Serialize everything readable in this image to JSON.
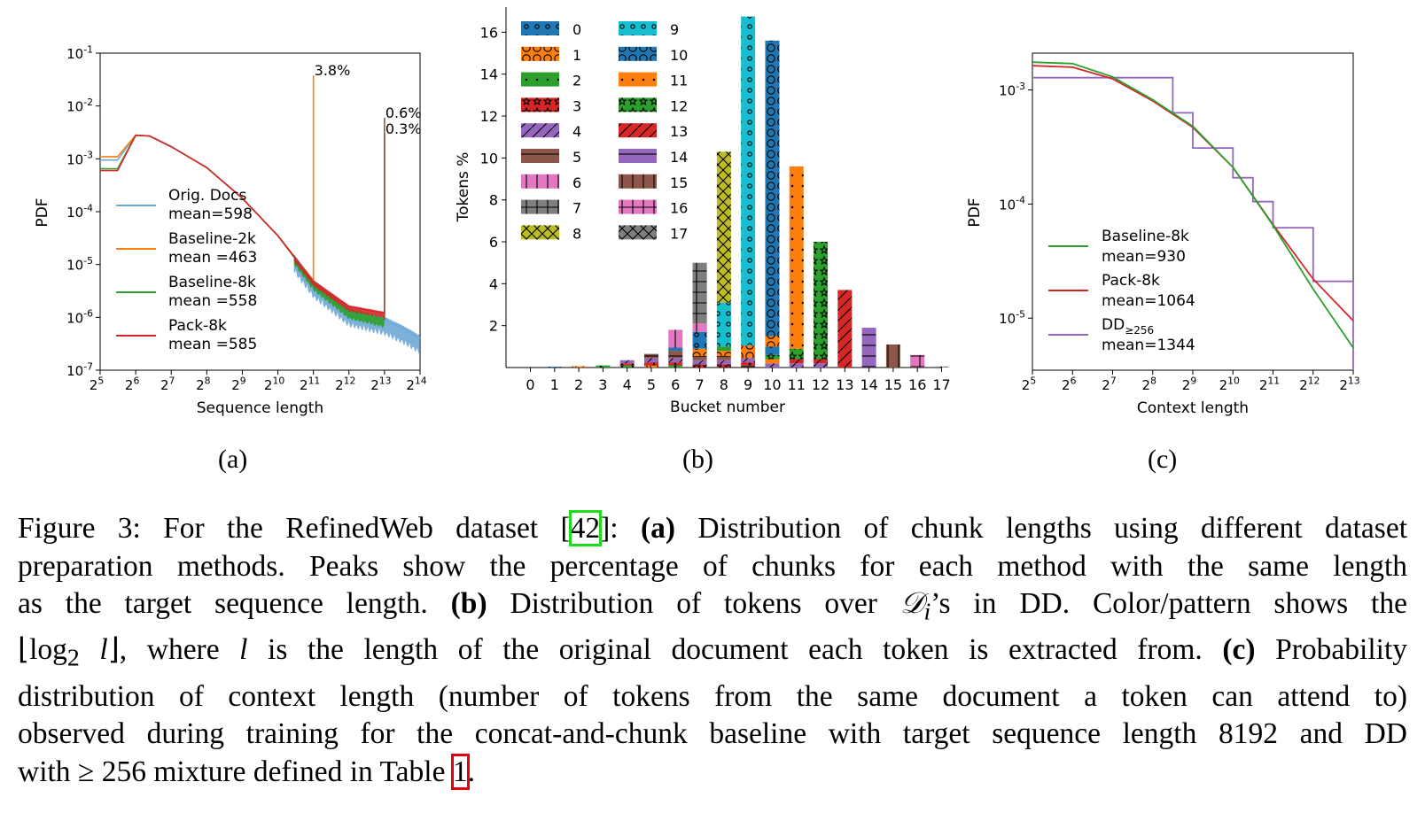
{
  "panel_labels": [
    "(a)",
    "(b)",
    "(c)"
  ],
  "caption": {
    "lines": [
      [
        "Figure 3: For the RefinedWeb dataset [",
        "42",
        "]: ",
        "(a)",
        " Distribution of chunk lengths using different dataset"
      ],
      [
        "preparation methods. Peaks show the percentage of chunks for each method with the same length"
      ],
      [
        "as the target sequence length. ",
        "(b)",
        " Distribution of tokens over ",
        "𝒟",
        "i",
        "’s in DD. Color/pattern shows the"
      ],
      [
        "⌊log",
        "2",
        " l",
        "⌋, where ",
        "l",
        " is the length of the original document each token is extracted from. ",
        "(c)",
        " Probability"
      ],
      [
        "distribution of context length (number of tokens from the same document a token can attend to)"
      ],
      [
        "observed during training for the concat-and-chunk baseline with target sequence length 8192 and DD"
      ],
      [
        "with ≥ 256 mixture defined in Table ",
        "1",
        "."
      ]
    ]
  },
  "chart_data": [
    {
      "type": "line",
      "panel": "(a)",
      "xlabel": "Sequence length",
      "ylabel": "PDF",
      "xscale": "log2",
      "yscale": "log10",
      "xlim": [
        32,
        16384
      ],
      "ylim": [
        1e-07,
        0.1
      ],
      "x_ticks": [
        "2^5",
        "2^6",
        "2^7",
        "2^8",
        "2^9",
        "2^10",
        "2^11",
        "2^12",
        "2^13",
        "2^14"
      ],
      "y_ticks": [
        "10^-7",
        "10^-6",
        "10^-5",
        "10^-4",
        "10^-3",
        "10^-2",
        "10^-1"
      ],
      "legend_position": "center-left",
      "series": [
        {
          "name": "Orig. Docs",
          "mean_label": "mean=598",
          "color": "#6fa8d6",
          "x": [
            32,
            45,
            64,
            84,
            128,
            256,
            512,
            1024,
            2048,
            4096,
            8192,
            12000,
            16384
          ],
          "y": [
            0.00095,
            0.00095,
            0.0028,
            0.0027,
            0.0017,
            0.00068,
            0.00018,
            3.5e-05,
            4.5e-06,
            1.3e-06,
            9e-07,
            6e-07,
            4e-07
          ]
        },
        {
          "name": "Baseline-2k",
          "mean_label": "mean =463",
          "color": "#ff7f0e",
          "x": [
            32,
            45,
            64,
            84,
            128,
            256,
            512,
            1024,
            2048
          ],
          "y": [
            0.0011,
            0.0011,
            0.0028,
            0.0027,
            0.0017,
            0.00068,
            0.00018,
            3.5e-05,
            5e-06
          ],
          "peak": {
            "x": 2048,
            "label": "3.8%"
          }
        },
        {
          "name": "Baseline-8k",
          "mean_label": "mean =558",
          "color": "#2ca02c",
          "x": [
            32,
            45,
            64,
            84,
            128,
            256,
            512,
            1024,
            2048,
            4096,
            8192
          ],
          "y": [
            0.00065,
            0.00065,
            0.0028,
            0.0027,
            0.0017,
            0.00068,
            0.00018,
            3.5e-05,
            4.5e-06,
            1.3e-06,
            9e-07
          ],
          "peak": {
            "x": 8192,
            "label": "0.3%"
          }
        },
        {
          "name": "Pack-8k",
          "mean_label": "mean =585",
          "color": "#d62728",
          "x": [
            32,
            45,
            64,
            84,
            128,
            256,
            512,
            1024,
            2048,
            4096,
            8192
          ],
          "y": [
            0.0006,
            0.0006,
            0.0028,
            0.0027,
            0.0017,
            0.00068,
            0.00018,
            3.5e-05,
            4.8e-06,
            1.6e-06,
            1.2e-06
          ],
          "peak": {
            "x": 8192,
            "label": "0.6%"
          }
        }
      ],
      "peak_marker_color": "#8c564b"
    },
    {
      "type": "bar",
      "panel": "(b)",
      "stacked": true,
      "xlabel": "Bucket number",
      "ylabel": "Tokens %",
      "ylim": [
        0,
        17.2
      ],
      "y_ticks": [
        2,
        4,
        6,
        8,
        10,
        12,
        14,
        16
      ],
      "categories": [
        "0",
        "1",
        "2",
        "3",
        "4",
        "5",
        "6",
        "7",
        "8",
        "9",
        "10",
        "11",
        "12",
        "13",
        "14",
        "15",
        "16",
        "17"
      ],
      "legend_position": "top-left",
      "legend": [
        {
          "label": "0",
          "color": "#1f77b4",
          "pattern": "o"
        },
        {
          "label": "1",
          "color": "#ff7f0e",
          "pattern": "O"
        },
        {
          "label": "2",
          "color": "#2ca02c",
          "pattern": "."
        },
        {
          "label": "3",
          "color": "#d62728",
          "pattern": "*"
        },
        {
          "label": "4",
          "color": "#9467bd",
          "pattern": "/"
        },
        {
          "label": "5",
          "color": "#8c564b",
          "pattern": "-"
        },
        {
          "label": "6",
          "color": "#e377c2",
          "pattern": "|"
        },
        {
          "label": "7",
          "color": "#7f7f7f",
          "pattern": "+"
        },
        {
          "label": "8",
          "color": "#bcbd22",
          "pattern": "x"
        },
        {
          "label": "9",
          "color": "#17becf",
          "pattern": "o"
        },
        {
          "label": "10",
          "color": "#1f77b4",
          "pattern": "O"
        },
        {
          "label": "11",
          "color": "#ff7f0e",
          "pattern": "."
        },
        {
          "label": "12",
          "color": "#2ca02c",
          "pattern": "*"
        },
        {
          "label": "13",
          "color": "#d62728",
          "pattern": "/"
        },
        {
          "label": "14",
          "color": "#9467bd",
          "pattern": "-"
        },
        {
          "label": "15",
          "color": "#8c564b",
          "pattern": "|"
        },
        {
          "label": "16",
          "color": "#e377c2",
          "pattern": "+"
        },
        {
          "label": "17",
          "color": "#7f7f7f",
          "pattern": "x"
        }
      ],
      "stacks": [
        [],
        [
          {
            "s": 0,
            "v": 0.04
          }
        ],
        [
          {
            "s": 1,
            "v": 0.06
          }
        ],
        [
          {
            "s": 2,
            "v": 0.1
          }
        ],
        [
          {
            "s": 2,
            "v": 0.1
          },
          {
            "s": 3,
            "v": 0.1
          },
          {
            "s": 4,
            "v": 0.15
          }
        ],
        [
          {
            "s": 1,
            "v": 0.1
          },
          {
            "s": 3,
            "v": 0.15
          },
          {
            "s": 4,
            "v": 0.2
          },
          {
            "s": 5,
            "v": 0.2
          }
        ],
        [
          {
            "s": 2,
            "v": 0.1
          },
          {
            "s": 3,
            "v": 0.15
          },
          {
            "s": 4,
            "v": 0.2
          },
          {
            "s": 5,
            "v": 0.35
          },
          {
            "s": 0,
            "v": 0.15
          },
          {
            "s": 6,
            "v": 0.85
          }
        ],
        [
          {
            "s": 3,
            "v": 0.15
          },
          {
            "s": 4,
            "v": 0.2
          },
          {
            "s": 5,
            "v": 0.2
          },
          {
            "s": 1,
            "v": 0.35
          },
          {
            "s": 0,
            "v": 0.8
          },
          {
            "s": 6,
            "v": 0.4
          },
          {
            "s": 7,
            "v": 2.9
          }
        ],
        [
          {
            "s": 3,
            "v": 0.15
          },
          {
            "s": 4,
            "v": 0.2
          },
          {
            "s": 5,
            "v": 0.2
          },
          {
            "s": 1,
            "v": 0.25
          },
          {
            "s": 2,
            "v": 0.2
          },
          {
            "s": 9,
            "v": 2.1
          },
          {
            "s": 8,
            "v": 7.2
          }
        ],
        [
          {
            "s": 5,
            "v": 0.1
          },
          {
            "s": 3,
            "v": 0.15
          },
          {
            "s": 4,
            "v": 0.2
          },
          {
            "s": 1,
            "v": 0.6
          },
          {
            "s": 9,
            "v": 15.7
          }
        ],
        [
          {
            "s": 4,
            "v": 0.2
          },
          {
            "s": 11,
            "v": 0.2
          },
          {
            "s": 12,
            "v": 0.2
          },
          {
            "s": 0,
            "v": 0.4
          },
          {
            "s": 1,
            "v": 0.5
          },
          {
            "s": 10,
            "v": 14.1
          }
        ],
        [
          {
            "s": 4,
            "v": 0.2
          },
          {
            "s": 13,
            "v": 0.2
          },
          {
            "s": 12,
            "v": 0.5
          },
          {
            "s": 11,
            "v": 8.7
          }
        ],
        [
          {
            "s": 4,
            "v": 0.2
          },
          {
            "s": 13,
            "v": 0.2
          },
          {
            "s": 12,
            "v": 5.6
          }
        ],
        [
          {
            "s": 13,
            "v": 3.7
          }
        ],
        [
          {
            "s": 14,
            "v": 1.9
          }
        ],
        [
          {
            "s": 15,
            "v": 1.1
          }
        ],
        [
          {
            "s": 16,
            "v": 0.6
          }
        ],
        [
          {
            "s": 17,
            "v": 0.05
          }
        ]
      ]
    },
    {
      "type": "line",
      "panel": "(c)",
      "xlabel": "Context length",
      "ylabel": "PDF",
      "xscale": "log2",
      "yscale": "log10",
      "xlim": [
        32,
        8192
      ],
      "ylim": [
        3.5e-06,
        0.0021
      ],
      "x_ticks": [
        "2^5",
        "2^6",
        "2^7",
        "2^8",
        "2^9",
        "2^10",
        "2^11",
        "2^12",
        "2^13"
      ],
      "y_ticks": [
        "10^-5",
        "10^-4",
        "10^-3"
      ],
      "legend_position": "lower-left",
      "series": [
        {
          "name": "Baseline-8k",
          "mean_label": "mean=930",
          "color": "#2ca02c",
          "x": [
            32,
            64,
            128,
            256,
            512,
            1024,
            2048,
            4096,
            8192
          ],
          "y": [
            0.00175,
            0.0017,
            0.0013,
            0.00082,
            0.00048,
            0.00021,
            6.5e-05,
            1.8e-05,
            5.5e-06
          ]
        },
        {
          "name": "Pack-8k",
          "mean_label": "mean=1064",
          "color": "#d62728",
          "x": [
            32,
            64,
            128,
            256,
            512,
            1024,
            2048,
            4096,
            8192
          ],
          "y": [
            0.00163,
            0.00158,
            0.00125,
            0.0008,
            0.00047,
            0.00021,
            6.6e-05,
            2.2e-05,
            9.5e-06
          ]
        },
        {
          "name": "DD",
          "name_subscript": "≥256",
          "mean_label": "mean=1344",
          "color": "#9467bd",
          "step": true,
          "x": [
            32,
            256,
            362,
            724,
            1024,
            1448,
            2048,
            2896,
            4096,
            5793,
            8192
          ],
          "y": [
            0.0013,
            0.0013,
            0.00062,
            0.00031,
            0.000175,
            0.00011,
            6.2e-05,
            3.5e-05,
            2e-05,
            2e-05,
            2e-05
          ]
        }
      ]
    }
  ]
}
